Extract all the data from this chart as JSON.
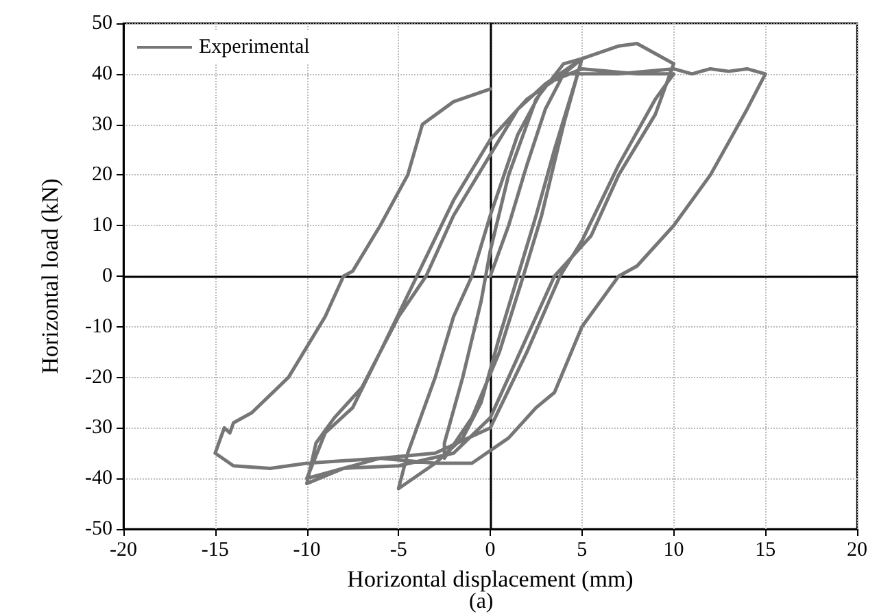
{
  "chart_data": {
    "type": "line",
    "xlabel": "Horizontal displacement (mm)",
    "ylabel": "Horizontal load (kN)",
    "annotations": [
      "(a)"
    ],
    "xlim": [
      -20,
      20
    ],
    "xticks": [
      -20,
      -15,
      -10,
      -5,
      0,
      5,
      10,
      15,
      20
    ],
    "ylim": [
      -50,
      50
    ],
    "yticks": [
      -50,
      -40,
      -30,
      -20,
      -10,
      0,
      10,
      20,
      30,
      40,
      50
    ],
    "grid": true,
    "legend": "top left",
    "marker": "none",
    "line_style": "solid",
    "series": [
      {
        "name": "Experimental",
        "color": "#767676",
        "x": [
          0,
          1,
          2,
          3,
          4,
          5,
          4.6,
          3.5,
          2.5,
          1.5,
          0.5,
          -0.5,
          -1.5,
          -3,
          -5,
          -4.5,
          -3,
          -2,
          -1,
          0,
          1.5,
          3,
          5,
          4,
          2.8,
          1.8,
          0.5,
          -1,
          -2.5,
          -2.5,
          -1.5,
          -0.5,
          0,
          1,
          2.5,
          4,
          5,
          7,
          8,
          9,
          10,
          9,
          7,
          5.5,
          3.5,
          2,
          0,
          -2,
          -5,
          -8,
          -10,
          -9.5,
          -8.5,
          -7,
          -5,
          -3.5,
          -2,
          0,
          1.5,
          3,
          5,
          8,
          10,
          9,
          7,
          5,
          3.8,
          2,
          0,
          -3,
          -6,
          -10,
          -9,
          -7.5,
          -6,
          -4,
          -2,
          0,
          2,
          4,
          7,
          10,
          11,
          12,
          13,
          14,
          15,
          14,
          12,
          10,
          8,
          7,
          5,
          3.5,
          2.5,
          1,
          -1,
          -3,
          -6,
          -10,
          -12,
          -14,
          -15,
          -14.5,
          -14.2,
          -14,
          -13,
          -11,
          -9,
          -8,
          -7.5,
          -6,
          -4.5,
          -3.7,
          -2,
          0
        ],
        "values": [
          0,
          10,
          22,
          33,
          40,
          43,
          38,
          25,
          12,
          0,
          -12,
          -25,
          -32,
          -37,
          -42,
          -35,
          -20,
          -8,
          0,
          12,
          28,
          38,
          43,
          30,
          12,
          0,
          -15,
          -28,
          -36,
          -33,
          -20,
          -5,
          5,
          20,
          35,
          42,
          43,
          45.5,
          46,
          44,
          42,
          32,
          20,
          8,
          0,
          -12,
          -28,
          -35,
          -37.5,
          -38,
          -41,
          -33,
          -28,
          -22,
          -8,
          0,
          12,
          24,
          33,
          38,
          41,
          40,
          40,
          35,
          22,
          7,
          0,
          -15,
          -30,
          -35,
          -36,
          -40,
          -31,
          -26,
          -15,
          0,
          15,
          27,
          35,
          40,
          40,
          41,
          40,
          41,
          40.5,
          41,
          40,
          33,
          20,
          10,
          2,
          0,
          -10,
          -23,
          -26,
          -32,
          -37,
          -37,
          -36,
          -37,
          -38,
          -37.5,
          -35,
          -30,
          -31,
          -29,
          -27,
          -20,
          -8,
          0,
          1,
          10,
          20,
          30,
          34.5,
          37
        ]
      }
    ]
  }
}
